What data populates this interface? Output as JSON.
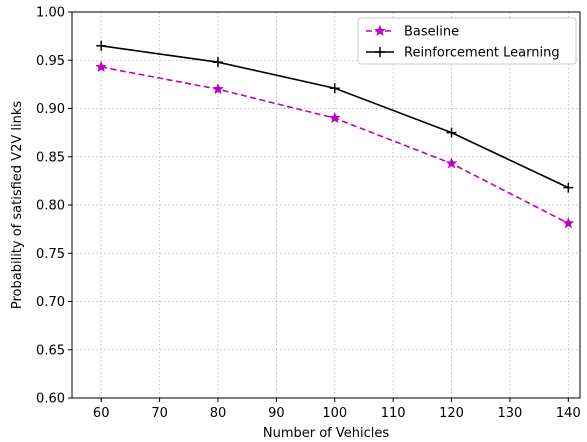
{
  "chart_data": {
    "type": "line",
    "xlabel": "Number of Vehicles",
    "ylabel": "Probability of satisfied V2V links",
    "xlim": [
      55,
      142
    ],
    "ylim": [
      0.6,
      1.0
    ],
    "xticks": [
      60,
      70,
      80,
      90,
      100,
      110,
      120,
      130,
      140
    ],
    "yticks": [
      0.6,
      0.65,
      0.7,
      0.75,
      0.8,
      0.85,
      0.9,
      0.95,
      1.0
    ],
    "xtick_labels": [
      "60",
      "70",
      "80",
      "90",
      "100",
      "110",
      "120",
      "130",
      "140"
    ],
    "ytick_labels": [
      "0.60",
      "0.65",
      "0.70",
      "0.75",
      "0.80",
      "0.85",
      "0.90",
      "0.95",
      "1.00"
    ],
    "grid": true,
    "legend_position": "top-right",
    "x": [
      60,
      80,
      100,
      120,
      140
    ],
    "series": [
      {
        "name": "Baseline",
        "values": [
          0.943,
          0.92,
          0.89,
          0.843,
          0.781
        ],
        "color": "#bf00bf",
        "line_style": "dashed",
        "marker": "star"
      },
      {
        "name": "Reinforcement Learning",
        "values": [
          0.965,
          0.948,
          0.921,
          0.875,
          0.818
        ],
        "color": "#000000",
        "line_style": "solid",
        "marker": "plus"
      }
    ]
  }
}
